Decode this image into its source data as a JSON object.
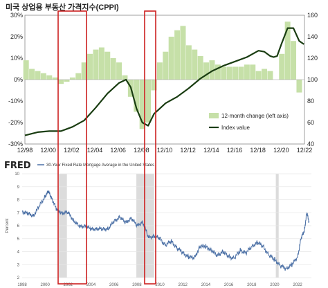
{
  "title": "미국 상업용 부동산 가격지수(CPPI)",
  "chart_data": [
    {
      "type": "bar+line",
      "title": "미국 상업용 부동산 가격지수(CPPI)",
      "x_labels": [
        "12/98",
        "12/00",
        "12/02",
        "12/04",
        "12/06",
        "12/08",
        "12/10",
        "12/12",
        "12/14",
        "12/16",
        "12/18",
        "12/20",
        "12/22"
      ],
      "y_left_labels": [
        "30%",
        "20%",
        "10%",
        "0%",
        "-10%",
        "-20%",
        "-30%"
      ],
      "y_left_lim": [
        -30,
        30
      ],
      "y_right_labels": [
        "160",
        "140",
        "120",
        "100",
        "80",
        "60",
        "40"
      ],
      "y_right_lim": [
        40,
        160
      ],
      "legend": {
        "placement": "bottom-right",
        "entries": [
          "12-month change (left axis)",
          "Index value"
        ]
      },
      "series": [
        {
          "name": "12-month change (left axis)",
          "kind": "bar",
          "color": "#c6e0a8",
          "x": [
            1999,
            1999.5,
            2000,
            2000.5,
            2001,
            2001.5,
            2002,
            2002.5,
            2003,
            2003.5,
            2004,
            2004.5,
            2005,
            2005.5,
            2006,
            2006.5,
            2007,
            2007.5,
            2008,
            2008.5,
            2009,
            2009.5,
            2010,
            2010.5,
            2011,
            2011.5,
            2012,
            2012.5,
            2013,
            2013.5,
            2014,
            2014.5,
            2015,
            2015.5,
            2016,
            2016.5,
            2017,
            2017.5,
            2018,
            2018.5,
            2019,
            2019.5,
            2020,
            2020.5,
            2021,
            2021.5,
            2022,
            2022.5
          ],
          "values": [
            9,
            5,
            4,
            3,
            2,
            1,
            -2,
            -1,
            1,
            3,
            8,
            12,
            14,
            15,
            13,
            10,
            8,
            2,
            -8,
            -15,
            -23,
            -20,
            -5,
            8,
            13,
            20,
            23,
            25,
            16,
            14,
            11,
            8,
            9,
            7,
            6,
            6,
            6,
            6,
            7,
            7,
            4,
            5,
            4,
            0,
            12,
            27,
            18,
            -6
          ]
        },
        {
          "name": "Index value",
          "kind": "line",
          "color": "#1a3d12",
          "x": [
            1998.9,
            2000,
            2001,
            2002,
            2002.5,
            2003,
            2004,
            2005,
            2006,
            2007,
            2007.6,
            2008,
            2008.5,
            2009,
            2009.5,
            2010,
            2011,
            2012,
            2013,
            2014,
            2015,
            2016,
            2017,
            2018,
            2019,
            2019.5,
            2020,
            2020.3,
            2020.6,
            2021,
            2021.5,
            2022,
            2022.5,
            2022.9
          ],
          "values": [
            48,
            51,
            52,
            52,
            54,
            56,
            62,
            74,
            87,
            97,
            100,
            93,
            73,
            60,
            57,
            68,
            78,
            84,
            92,
            101,
            108,
            113,
            117,
            121,
            127,
            126,
            122,
            121,
            122,
            134,
            148,
            148,
            136,
            133
          ]
        }
      ]
    },
    {
      "type": "line",
      "title": "30-Year Fixed Rate Mortgage Average in the United States",
      "source_logo": "FRED",
      "ylabel": "Percent",
      "y_labels": [
        "10",
        "9",
        "8",
        "7",
        "6",
        "5",
        "4",
        "3",
        "2"
      ],
      "ylim": [
        2,
        10
      ],
      "x_labels": [
        "1998",
        "2000",
        "2002",
        "2004",
        "2006",
        "2008",
        "2010",
        "2012",
        "2014",
        "2016",
        "2018",
        "2020",
        "2022"
      ],
      "recessions": [
        [
          2001.2,
          2001.9
        ],
        [
          2007.95,
          2009.5
        ],
        [
          2020.1,
          2020.35
        ]
      ],
      "series": [
        {
          "name": "30-Year Fixed Rate Mortgage Average in the United States",
          "color": "#4a6fa5",
          "x": [
            1998,
            1998.5,
            1999,
            1999.5,
            2000,
            2000.3,
            2000.6,
            2001,
            2001.5,
            2002,
            2002.5,
            2003,
            2003.5,
            2004,
            2004.5,
            2005,
            2005.5,
            2006,
            2006.5,
            2007,
            2007.5,
            2008,
            2008.5,
            2009,
            2009.5,
            2010,
            2010.5,
            2011,
            2011.5,
            2012,
            2012.5,
            2013,
            2013.5,
            2014,
            2014.5,
            2015,
            2015.5,
            2016,
            2016.5,
            2017,
            2017.5,
            2018,
            2018.5,
            2019,
            2019.5,
            2020,
            2020.5,
            2021,
            2021.5,
            2022,
            2022.3,
            2022.6,
            2022.8,
            2023
          ],
          "values": [
            7.1,
            6.9,
            6.8,
            7.5,
            8.3,
            8.6,
            8.1,
            7.2,
            7.0,
            7.0,
            6.4,
            5.9,
            6.0,
            5.7,
            5.8,
            5.7,
            5.8,
            6.3,
            6.7,
            6.2,
            6.6,
            6.0,
            6.3,
            5.1,
            5.2,
            5.0,
            4.5,
            4.8,
            4.3,
            3.9,
            3.6,
            3.5,
            4.4,
            4.4,
            4.1,
            3.7,
            4.0,
            3.6,
            3.5,
            4.1,
            3.9,
            4.4,
            4.7,
            4.4,
            3.7,
            3.4,
            2.9,
            2.7,
            3.0,
            3.6,
            5.0,
            5.7,
            7.0,
            6.3
          ]
        }
      ]
    }
  ]
}
